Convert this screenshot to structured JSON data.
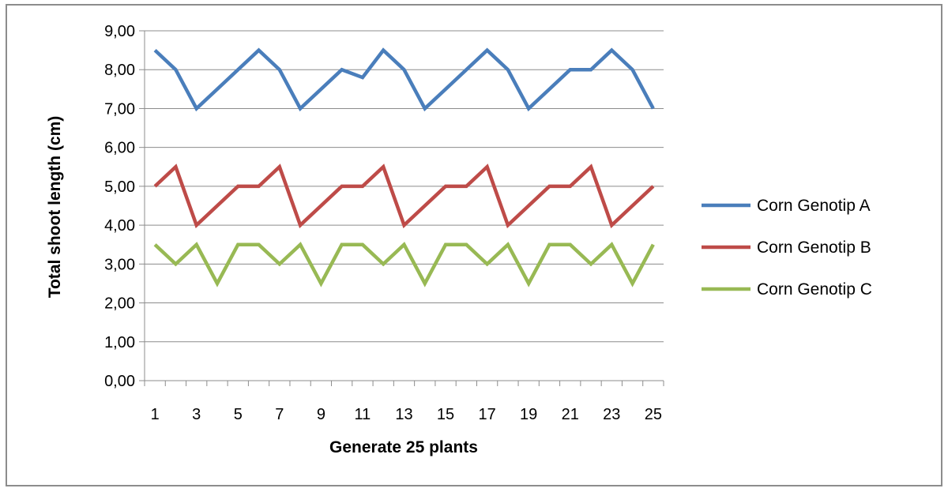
{
  "chart_data": {
    "type": "line",
    "title": "",
    "xlabel": "Generate 25 plants",
    "ylabel": "Total shoot length (cm)",
    "ylim": [
      0,
      9
    ],
    "y_ticks": [
      "0,00",
      "1,00",
      "2,00",
      "3,00",
      "4,00",
      "5,00",
      "6,00",
      "7,00",
      "8,00",
      "9,00"
    ],
    "x_ticks": [
      "1",
      "3",
      "5",
      "7",
      "9",
      "11",
      "13",
      "15",
      "17",
      "19",
      "21",
      "23",
      "25"
    ],
    "x": [
      1,
      2,
      3,
      4,
      5,
      6,
      7,
      8,
      9,
      10,
      11,
      12,
      13,
      14,
      15,
      16,
      17,
      18,
      19,
      20,
      21,
      22,
      23,
      24,
      25
    ],
    "grid": "horizontal",
    "legend_position": "right",
    "series": [
      {
        "name": "Corn Genotip A",
        "color": "#4a7ebb",
        "values": [
          8.5,
          8.0,
          7.0,
          7.5,
          8.0,
          8.5,
          8.0,
          7.0,
          7.5,
          8.0,
          7.8,
          8.5,
          8.0,
          7.0,
          7.5,
          8.0,
          8.5,
          8.0,
          7.0,
          7.5,
          8.0,
          8.0,
          8.5,
          8.0,
          7.0
        ]
      },
      {
        "name": "Corn Genotip B",
        "color": "#be4b48",
        "values": [
          5.0,
          5.5,
          4.0,
          4.5,
          5.0,
          5.0,
          5.5,
          4.0,
          4.5,
          5.0,
          5.0,
          5.5,
          4.0,
          4.5,
          5.0,
          5.0,
          5.5,
          4.0,
          4.5,
          5.0,
          5.0,
          5.5,
          4.0,
          4.5,
          5.0
        ]
      },
      {
        "name": "Corn Genotip C",
        "color": "#98b954",
        "values": [
          3.5,
          3.0,
          3.5,
          2.5,
          3.5,
          3.5,
          3.0,
          3.5,
          2.5,
          3.5,
          3.5,
          3.0,
          3.5,
          2.5,
          3.5,
          3.5,
          3.0,
          3.5,
          2.5,
          3.5,
          3.5,
          3.0,
          3.5,
          2.5,
          3.5
        ]
      }
    ]
  }
}
